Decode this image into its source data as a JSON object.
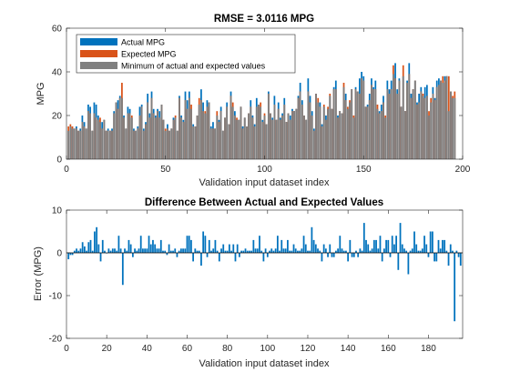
{
  "chart_data": [
    {
      "type": "bar",
      "title": "RMSE = 3.0116 MPG",
      "xlabel": "Validation input dataset index",
      "ylabel": "MPG",
      "xlim": [
        0,
        200
      ],
      "ylim": [
        0,
        60
      ],
      "xticks": [
        0,
        50,
        100,
        150,
        200
      ],
      "yticks": [
        0,
        20,
        40,
        60
      ],
      "legend_position": "top-left",
      "colors": {
        "actual": "#0072BD",
        "expected": "#D95319",
        "minimum": "#808080"
      },
      "series": [
        {
          "name": "Actual MPG",
          "values": [
            13,
            15,
            14,
            14,
            15,
            13,
            14,
            20,
            17,
            14,
            25,
            24,
            13,
            26,
            25,
            20,
            17,
            17,
            18,
            13,
            14,
            13,
            14,
            22,
            26,
            27,
            29,
            28,
            20,
            14,
            24,
            23,
            19,
            14,
            13,
            15,
            24,
            25,
            14,
            17,
            30,
            21,
            31,
            23,
            20,
            23,
            22,
            25,
            18,
            13,
            16,
            13,
            14,
            19,
            19,
            13,
            29,
            20,
            18,
            31,
            27,
            31,
            23,
            16,
            15,
            20,
            25,
            32,
            26,
            21,
            27,
            26,
            15,
            17,
            14,
            20,
            18,
            24,
            13,
            19,
            26,
            16,
            31,
            24,
            22,
            18,
            18,
            24,
            15,
            19,
            15,
            21,
            27,
            20,
            16,
            28,
            25,
            24,
            18,
            20,
            16,
            31,
            21,
            19,
            29,
            18,
            26,
            19,
            21,
            28,
            17,
            21,
            20,
            23,
            22,
            23,
            29,
            35,
            27,
            20,
            18,
            37,
            29,
            22,
            14,
            30,
            26,
            26,
            16,
            24,
            20,
            23,
            29,
            23,
            33,
            36,
            20,
            22,
            21,
            33,
            30,
            23,
            26,
            32,
            19,
            33,
            31,
            37,
            40,
            38,
            24,
            25,
            30,
            37,
            33,
            36,
            23,
            22,
            25,
            29,
            19,
            36,
            32,
            36,
            39,
            44,
            32,
            37,
            24,
            38,
            22,
            36,
            44,
            30,
            32,
            36,
            26,
            30,
            33,
            29,
            33,
            34,
            20,
            26,
            33,
            28,
            36,
            37,
            36,
            35,
            38,
            38,
            22,
            31,
            28,
            28
          ],
          "color": "#0072BD"
        },
        {
          "name": "Expected MPG",
          "values": [
            15,
            16,
            15,
            14,
            14,
            13,
            13,
            17,
            15,
            14,
            22,
            21,
            13,
            21,
            19,
            18,
            19,
            14,
            18,
            13,
            13,
            13,
            13,
            21,
            26,
            23,
            28,
            35,
            19,
            14,
            21,
            21,
            20,
            13,
            13,
            14,
            20,
            24,
            13,
            16,
            26,
            19,
            28,
            21,
            19,
            22,
            19,
            25,
            18,
            14,
            14,
            13,
            14,
            18,
            20,
            13,
            28,
            19,
            17,
            27,
            23,
            28,
            25,
            15,
            15,
            20,
            28,
            27,
            22,
            22,
            24,
            26,
            14,
            14,
            14,
            22,
            17,
            22,
            13,
            19,
            24,
            16,
            29,
            26,
            20,
            19,
            18,
            24,
            14,
            19,
            15,
            21,
            24,
            19,
            15,
            24,
            25,
            26,
            17,
            21,
            16,
            30,
            21,
            18,
            25,
            18,
            23,
            18,
            20,
            25,
            17,
            21,
            18,
            22,
            22,
            23,
            28,
            31,
            25,
            20,
            18,
            31,
            26,
            20,
            13,
            30,
            28,
            24,
            15,
            25,
            18,
            24,
            30,
            23,
            32,
            32,
            19,
            22,
            21,
            35,
            27,
            24,
            27,
            32,
            20,
            32,
            31,
            30,
            37,
            36,
            24,
            24,
            27,
            34,
            32,
            32,
            25,
            21,
            22,
            26,
            20,
            32,
            30,
            32,
            43,
            37,
            30,
            36,
            24,
            43,
            22,
            35,
            39,
            28,
            32,
            36,
            25,
            26,
            31,
            30,
            28,
            29,
            22,
            28,
            30,
            27,
            33,
            34,
            36,
            38,
            36,
            38,
            38,
            31,
            29,
            31
          ],
          "color": "#D95319"
        },
        {
          "name": "Minimum of actual and expected values",
          "values": [
            13,
            15,
            14,
            14,
            14,
            13,
            13,
            17,
            15,
            14,
            22,
            21,
            13,
            21,
            19,
            18,
            17,
            14,
            18,
            13,
            13,
            13,
            13,
            21,
            26,
            23,
            28,
            28,
            19,
            14,
            21,
            21,
            19,
            13,
            13,
            14,
            20,
            24,
            13,
            16,
            26,
            19,
            28,
            21,
            19,
            22,
            19,
            25,
            18,
            13,
            14,
            13,
            14,
            18,
            19,
            13,
            28,
            19,
            17,
            27,
            23,
            28,
            23,
            15,
            15,
            20,
            25,
            27,
            22,
            21,
            24,
            26,
            14,
            14,
            14,
            20,
            17,
            22,
            13,
            19,
            24,
            16,
            29,
            24,
            20,
            18,
            18,
            24,
            14,
            19,
            15,
            21,
            24,
            19,
            15,
            24,
            25,
            24,
            17,
            20,
            16,
            30,
            21,
            18,
            25,
            18,
            23,
            18,
            20,
            25,
            17,
            21,
            18,
            22,
            22,
            23,
            28,
            31,
            25,
            20,
            18,
            31,
            26,
            20,
            13,
            30,
            26,
            24,
            15,
            24,
            18,
            23,
            29,
            23,
            32,
            32,
            19,
            22,
            21,
            33,
            27,
            23,
            26,
            32,
            19,
            32,
            31,
            30,
            37,
            36,
            24,
            24,
            27,
            34,
            32,
            32,
            23,
            21,
            22,
            26,
            19,
            32,
            30,
            32,
            39,
            37,
            30,
            36,
            24,
            38,
            22,
            35,
            39,
            28,
            32,
            36,
            25,
            26,
            31,
            29,
            28,
            29,
            20,
            26,
            30,
            27,
            33,
            34,
            36,
            35,
            36,
            38,
            22,
            31,
            28,
            28
          ],
          "color": "#808080"
        }
      ]
    },
    {
      "type": "bar",
      "title": "Difference Between Actual and Expected Values",
      "xlabel": "Validation input dataset index",
      "ylabel": "Error (MPG)",
      "xlim": [
        0,
        197
      ],
      "ylim": [
        -20,
        10
      ],
      "xticks": [
        0,
        20,
        40,
        60,
        80,
        100,
        120,
        140,
        160,
        180
      ],
      "yticks": [
        -20,
        -10,
        0,
        10
      ],
      "color": "#0072BD",
      "series": [
        {
          "values": [
            -1.5,
            -0.5,
            -0.5,
            0.5,
            1,
            0.5,
            1,
            2.5,
            1.5,
            0.5,
            2.5,
            3,
            0.5,
            5,
            6,
            2,
            -2,
            3,
            0.5,
            0,
            1,
            0.5,
            1,
            1,
            0.5,
            4,
            1,
            -7.5,
            1,
            0.5,
            3,
            2,
            -1,
            1,
            0.5,
            1,
            4,
            1,
            1,
            1,
            4,
            2,
            3,
            2,
            1,
            1,
            3,
            0.5,
            0.5,
            -0.5,
            2,
            0.5,
            0.5,
            1,
            -1,
            0.5,
            1,
            1,
            1,
            4,
            4,
            3,
            -2,
            1,
            0.5,
            0.5,
            -3,
            5,
            4,
            -1,
            3,
            0.5,
            1,
            3,
            0.5,
            -2,
            1,
            2,
            0.5,
            0.5,
            2,
            0.5,
            2,
            -2,
            2,
            -1,
            0.5,
            0.5,
            1,
            0.5,
            0.5,
            0.5,
            3,
            1,
            1,
            4,
            0.5,
            -2,
            1,
            -1,
            0.5,
            1,
            0.5,
            1,
            4,
            0.5,
            3,
            1,
            1,
            3,
            0.5,
            0.5,
            2,
            1,
            0.5,
            0.5,
            1,
            4,
            2,
            0.5,
            0.5,
            6,
            3,
            2,
            1,
            0.5,
            -2,
            2,
            1,
            -1,
            2,
            -1,
            -1,
            0.5,
            1,
            4,
            1,
            0.5,
            0.5,
            -2,
            3,
            -1,
            -1,
            0.5,
            -1,
            1,
            0.5,
            7,
            3,
            2,
            0.5,
            1,
            3,
            3,
            1,
            4,
            -2,
            1,
            3,
            3,
            -1,
            4,
            2,
            4,
            -4,
            7,
            2,
            1,
            0.5,
            -5,
            0.5,
            1,
            5,
            2,
            0.5,
            0.5,
            1,
            4,
            2,
            -1,
            5,
            5,
            -2,
            -2,
            3,
            1,
            3,
            3,
            0.5,
            -3,
            2,
            0.5,
            -16,
            0.5,
            -1,
            -3
          ],
          "color": "#0072BD"
        }
      ]
    }
  ]
}
